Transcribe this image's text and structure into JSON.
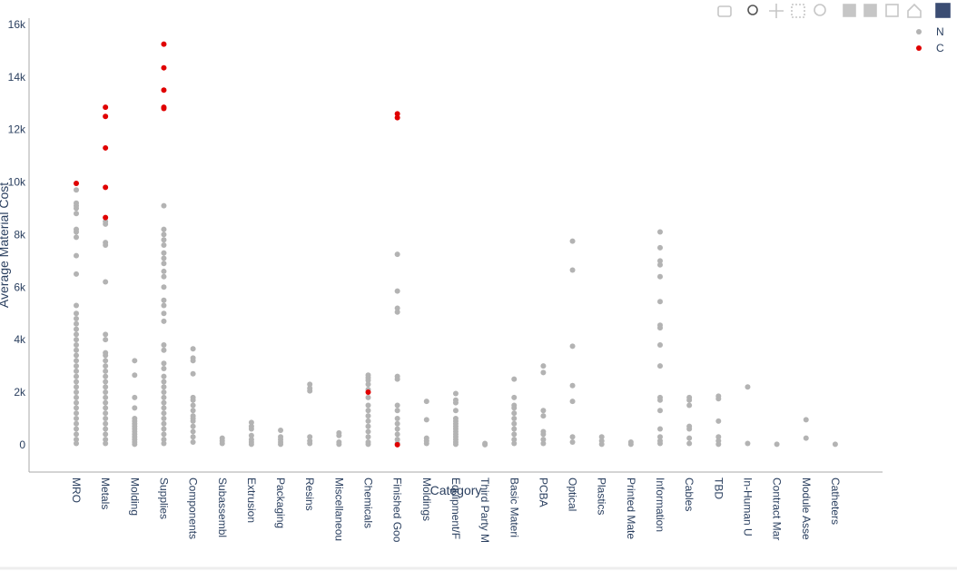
{
  "chart_data": {
    "type": "scatter",
    "x_label": "Category",
    "y_label": "Average Material Cost",
    "categories": [
      "MRO",
      "Metals",
      "Molding",
      "Supplies",
      "Components",
      "Subassembl",
      "Extrusion",
      "Packaging",
      "Resins",
      "Miscellaneou",
      "Chemicals",
      "Finished Goo",
      "Moldings",
      "Equipment/F",
      "Third Party M",
      "Basic Materi",
      "PCBA",
      "Optical",
      "Plastics",
      "Printed Mate",
      "Information",
      "Cables",
      "TBD",
      "In-Human U",
      "Contract Mar",
      "Module Asse",
      "Catheters"
    ],
    "ylim": [
      -1040,
      16240
    ],
    "yticks": [
      0,
      {
        "value": 2000,
        "label": "2k"
      },
      {
        "value": 4000,
        "label": "4k"
      },
      {
        "value": 6000,
        "label": "6k"
      },
      {
        "value": 8000,
        "label": "8k"
      },
      {
        "value": 10000,
        "label": "10k"
      },
      {
        "value": 12000,
        "label": "12k"
      },
      {
        "value": 14000,
        "label": "14k"
      },
      {
        "value": 16000,
        "label": "16k"
      }
    ],
    "grid": false,
    "legend_position": "top-right",
    "series": [
      {
        "name": "N",
        "color": "#b3b3b3",
        "values": [
          [
            9700,
            9200,
            9100,
            9000,
            8800,
            8200,
            8100,
            7900,
            7200,
            6500,
            5300,
            5000,
            4800,
            4600,
            4400,
            4200,
            4000,
            3800,
            3600,
            3400,
            3200,
            3000,
            2800,
            2600,
            2400,
            2200,
            2000,
            1800,
            1600,
            1400,
            1200,
            1000,
            800,
            600,
            400,
            200,
            50
          ],
          [
            8500,
            8400,
            7700,
            7600,
            6200,
            4200,
            4000,
            3500,
            3400,
            3200,
            3000,
            2800,
            2600,
            2400,
            2200,
            2000,
            1800,
            1600,
            1400,
            1200,
            1000,
            800,
            600,
            400,
            200,
            50
          ],
          [
            3200,
            2650,
            1800,
            1400,
            1000,
            900,
            800,
            700,
            600,
            500,
            400,
            300,
            200,
            100,
            20
          ],
          [
            9100,
            8200,
            8000,
            7800,
            7600,
            7300,
            7100,
            6900,
            6600,
            6400,
            6000,
            5500,
            5300,
            5000,
            4700,
            3800,
            3600,
            3100,
            2900,
            2600,
            2400,
            2200,
            2000,
            1800,
            1600,
            1400,
            1200,
            1000,
            800,
            600,
            400,
            200,
            50
          ],
          [
            3650,
            3300,
            3200,
            2700,
            1800,
            1700,
            1500,
            1300,
            1100,
            1000,
            900,
            700,
            500,
            300,
            100
          ],
          [
            250,
            150,
            50
          ],
          [
            850,
            700,
            600,
            350,
            200,
            100,
            20
          ],
          [
            550,
            300,
            200,
            100,
            20
          ],
          [
            2300,
            2150,
            2050,
            300,
            150,
            50
          ],
          [
            450,
            350,
            100,
            20
          ],
          [
            2650,
            2550,
            2450,
            2300,
            2100,
            1800,
            1500,
            1300,
            1100,
            900,
            700,
            500,
            300,
            100,
            20
          ],
          [
            7250,
            5850,
            5200,
            5050,
            2600,
            2500,
            1500,
            1300,
            1000,
            800,
            600,
            400,
            200,
            50
          ],
          [
            1650,
            950,
            250,
            150,
            50
          ],
          [
            1950,
            1700,
            1600,
            1300,
            1000,
            900,
            800,
            700,
            600,
            500,
            400,
            300,
            200,
            100,
            20
          ],
          [
            50,
            0
          ],
          [
            2500,
            1800,
            1500,
            1400,
            1200,
            1000,
            800,
            600,
            400,
            200,
            50
          ],
          [
            3000,
            2750,
            1300,
            1100,
            500,
            400,
            200,
            50
          ],
          [
            7750,
            6650,
            3750,
            2250,
            1650,
            300,
            100
          ],
          [
            300,
            150,
            20
          ],
          [
            100,
            20
          ],
          [
            8100,
            7500,
            7000,
            6850,
            6400,
            5450,
            4550,
            4450,
            3800,
            3000,
            1800,
            1700,
            1300,
            600,
            300,
            150,
            50
          ],
          [
            1800,
            1700,
            1500,
            700,
            600,
            250,
            50
          ],
          [
            1850,
            1750,
            900,
            300,
            150,
            20
          ],
          [
            2200,
            50
          ],
          [
            20
          ],
          [
            950,
            250
          ],
          [
            20
          ]
        ]
      },
      {
        "name": "C",
        "color": "#e00000",
        "values": [
          [
            9950
          ],
          [
            12850,
            12500,
            11300,
            9800,
            8650
          ],
          [],
          [
            15250,
            14350,
            13500,
            12850,
            12800
          ],
          [],
          [],
          [],
          [],
          [],
          [],
          [
            2000
          ],
          [
            12600,
            12450,
            0
          ],
          [],
          [],
          [],
          [],
          [],
          [],
          [],
          [],
          [],
          [],
          [],
          [],
          [],
          [],
          []
        ]
      }
    ]
  }
}
